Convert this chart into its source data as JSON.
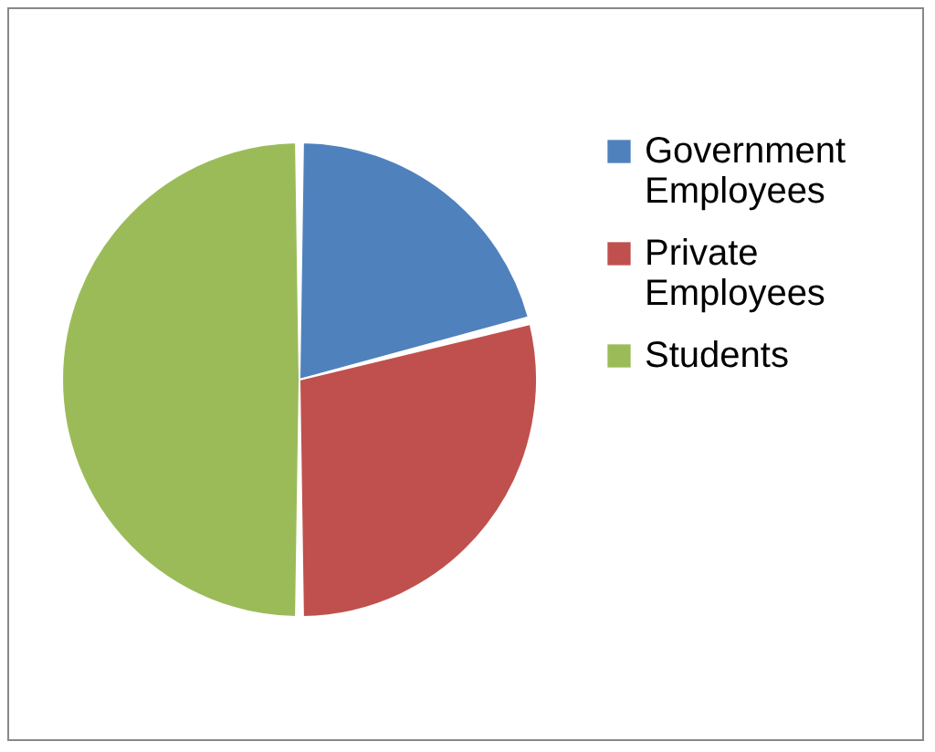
{
  "chart_data": {
    "type": "pie",
    "categories": [
      "Government Employees",
      "Private Employees",
      "Students"
    ],
    "values": [
      21,
      29,
      50
    ],
    "colors": [
      "#4f81bd",
      "#c0504d",
      "#9bbb59"
    ],
    "legend": "right"
  }
}
